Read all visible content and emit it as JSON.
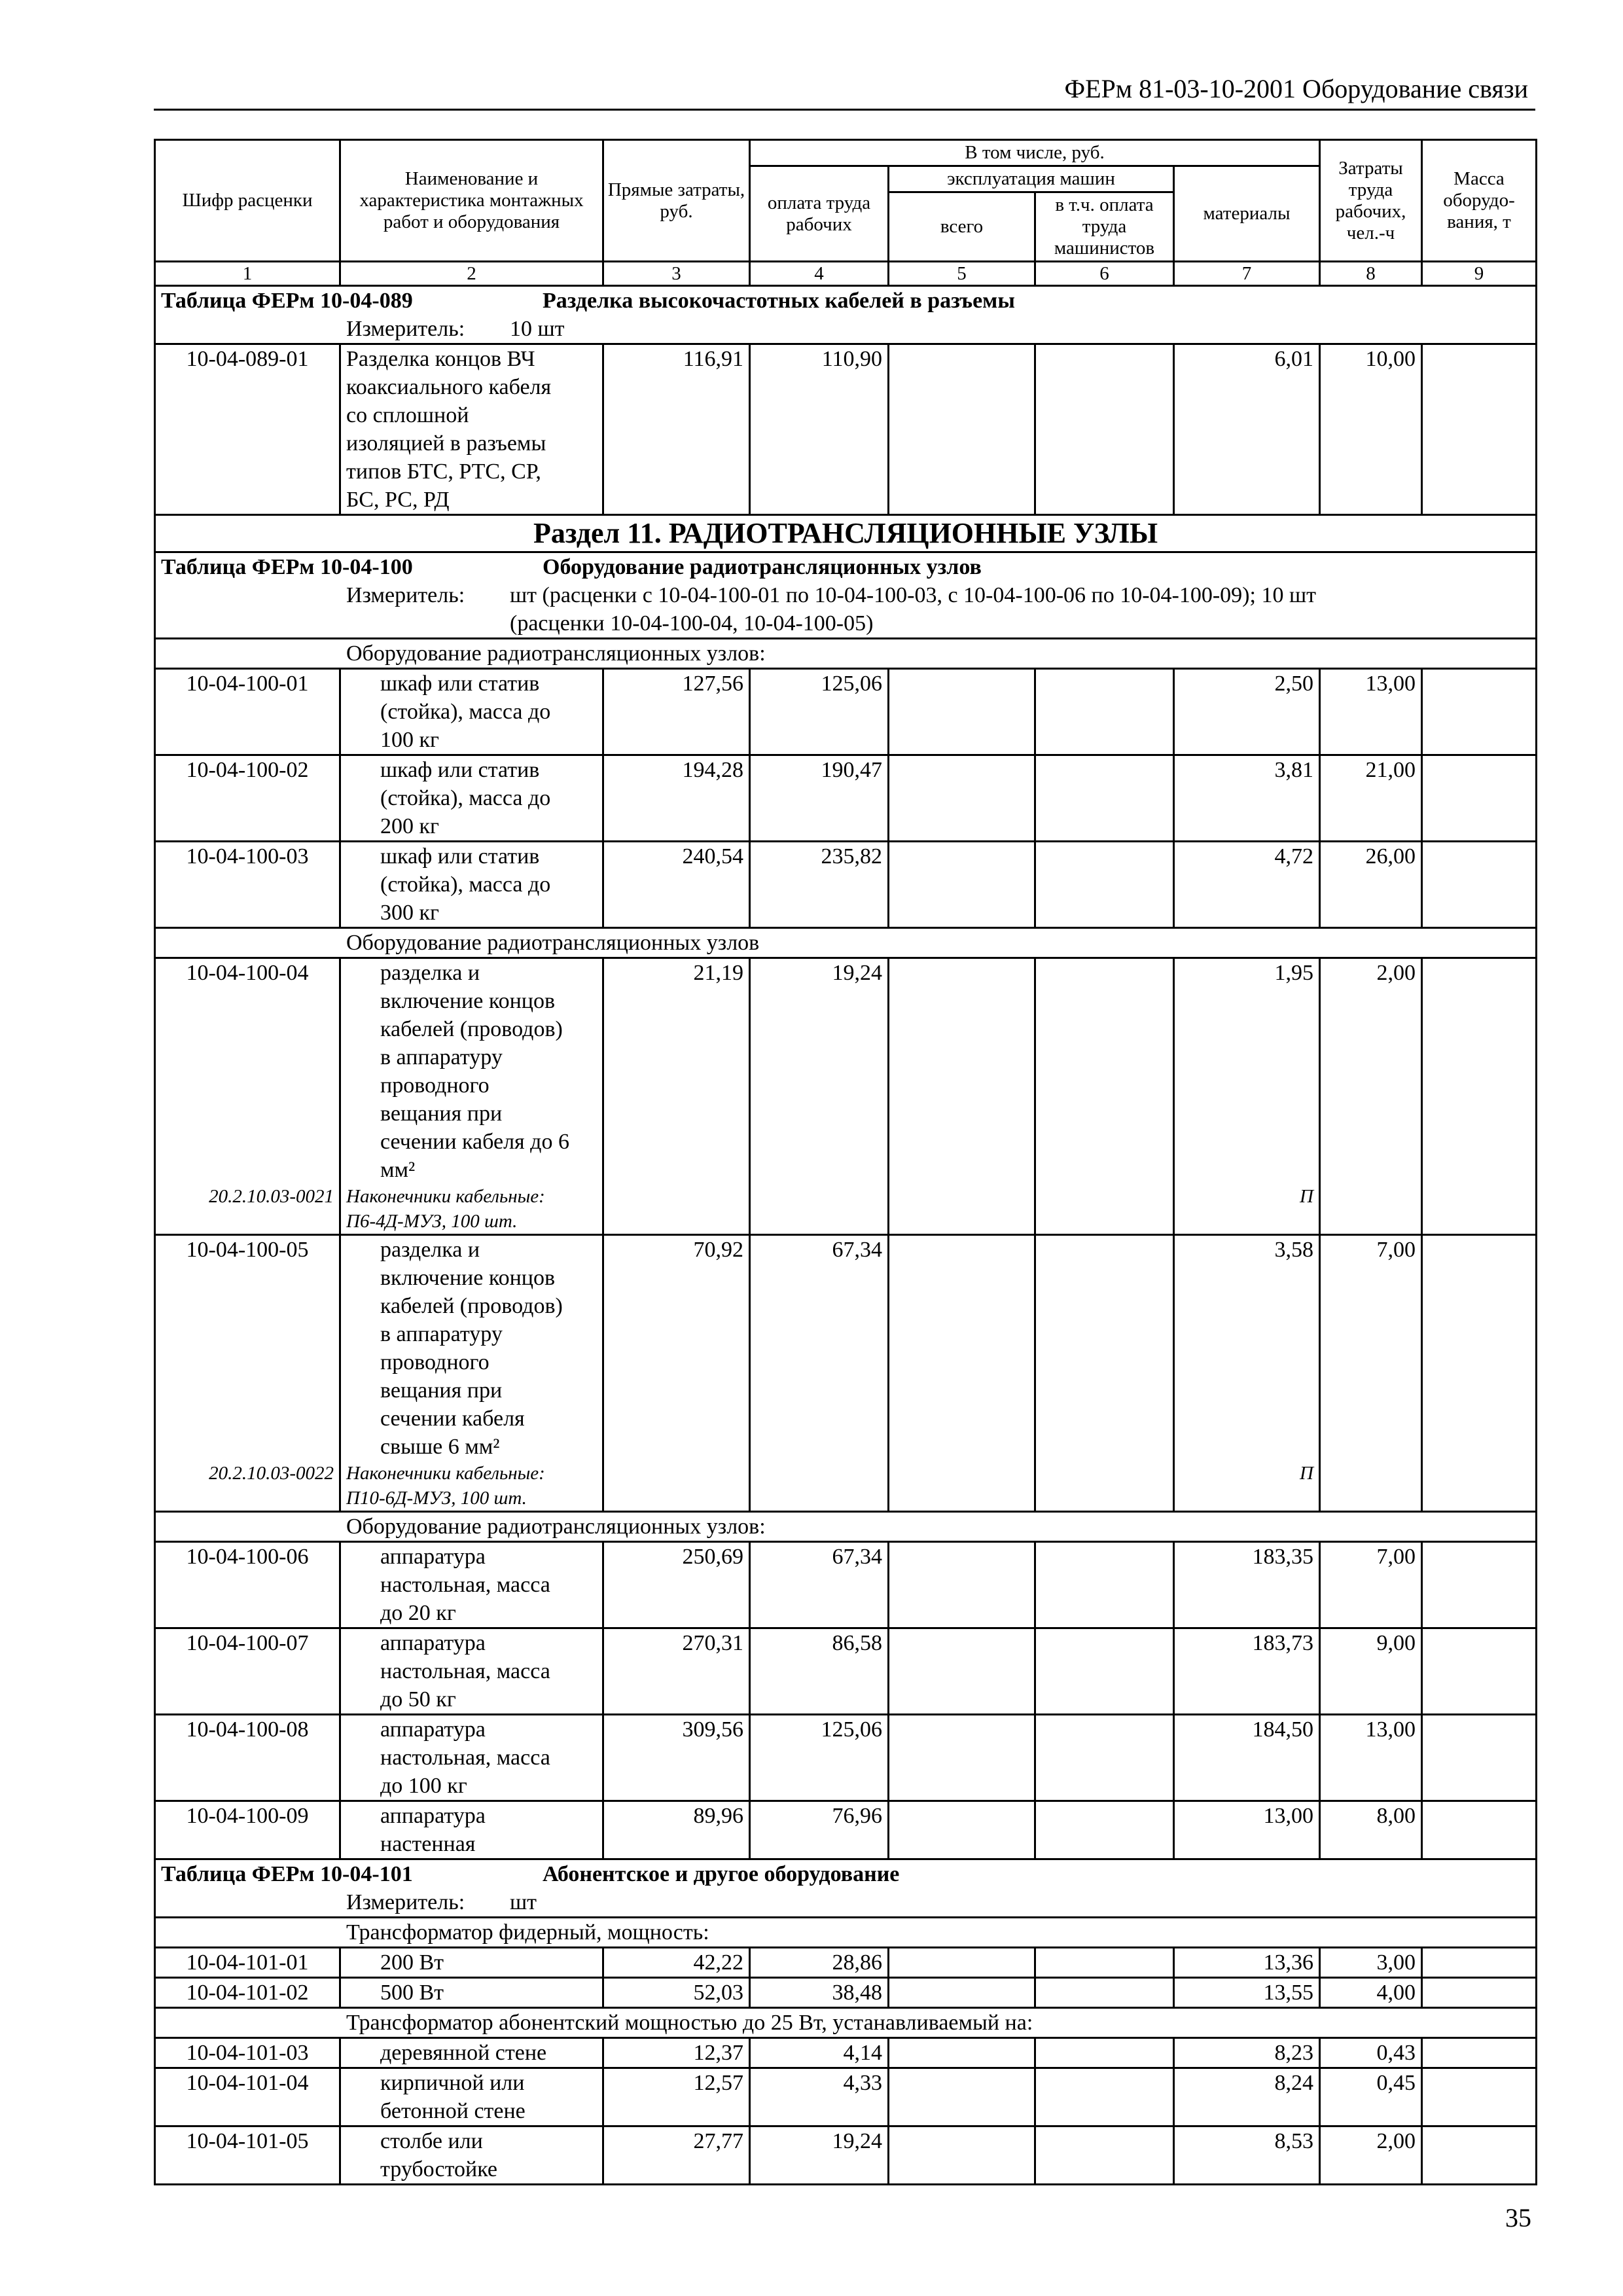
{
  "header": {
    "running_title": "ФЕРм 81-03-10-2001 Оборудование связи",
    "page_number": "35"
  },
  "columns": {
    "code": "Шифр расценки",
    "name": "Наименование и характеристика монтажных работ и оборудования",
    "direct": "Прямые затраты, руб.",
    "including": "В том числе, руб.",
    "wages": "оплата труда рабочих",
    "machines": "эксплуатация машин",
    "machines_total": "всего",
    "machinists": "в т.ч. оплата труда машинистов",
    "materials": "материалы",
    "labor": "Затраты труда рабочих, чел.-ч",
    "mass": "Масса оборудо-вания, т",
    "numbers": [
      "1",
      "2",
      "3",
      "4",
      "5",
      "6",
      "7",
      "8",
      "9"
    ]
  },
  "rows": [
    {
      "type": "table",
      "label": "Таблица ФЕРм 10-04-089",
      "title": "Разделка высокочастотных кабелей в разъемы"
    },
    {
      "type": "meter",
      "label": "Измеритель:",
      "value": "10 шт"
    },
    {
      "type": "item",
      "indent": false,
      "code": "10-04-089-01",
      "name": "Разделка концов ВЧ\nкоаксиального кабеля\nсо сплошной\nизоляцией в разъемы\nтипов БТС, РТС, СР,\nБС, РС, РД",
      "direct": "116,91",
      "wages": "110,90",
      "machines": "",
      "machinists": "",
      "materials": "6,01",
      "labor": "10,00",
      "mass": ""
    },
    {
      "type": "section",
      "text": "Раздел 11. РАДИОТРАНСЛЯЦИОННЫЕ УЗЛЫ"
    },
    {
      "type": "table",
      "label": "Таблица ФЕРм 10-04-100",
      "title": "Оборудование радиотрансляционных узлов"
    },
    {
      "type": "meter",
      "label": "Измеритель:",
      "value": "шт (расценки с 10-04-100-01 по 10-04-100-03, с 10-04-100-06 по 10-04-100-09); 10 шт\n(расценки 10-04-100-04, 10-04-100-05)"
    },
    {
      "type": "group",
      "text": "Оборудование радиотрансляционных узлов:"
    },
    {
      "type": "item",
      "indent": true,
      "code": "10-04-100-01",
      "name": "шкаф или статив\n(стойка), масса до\n100 кг",
      "direct": "127,56",
      "wages": "125,06",
      "machines": "",
      "machinists": "",
      "materials": "2,50",
      "labor": "13,00",
      "mass": ""
    },
    {
      "type": "item",
      "indent": true,
      "code": "10-04-100-02",
      "name": "шкаф или статив\n(стойка), масса до\n200 кг",
      "direct": "194,28",
      "wages": "190,47",
      "machines": "",
      "machinists": "",
      "materials": "3,81",
      "labor": "21,00",
      "mass": ""
    },
    {
      "type": "item",
      "indent": true,
      "code": "10-04-100-03",
      "name": "шкаф или статив\n(стойка), масса до\n300 кг",
      "direct": "240,54",
      "wages": "235,82",
      "machines": "",
      "machinists": "",
      "materials": "4,72",
      "labor": "26,00",
      "mass": ""
    },
    {
      "type": "group",
      "text": "Оборудование радиотрансляционных узлов"
    },
    {
      "type": "item",
      "indent": true,
      "code": "10-04-100-04",
      "name": "разделка и\nвключение концов\nкабелей (проводов)\nв аппаратуру\nпроводного\nвещания при\nсечении кабеля до 6\nмм²",
      "direct": "21,19",
      "wages": "19,24",
      "machines": "",
      "machinists": "",
      "materials": "1,95",
      "labor": "2,00",
      "mass": "",
      "resource": {
        "code": "20.2.10.03-0021",
        "name": "Наконечники кабельные:\nП6-4Д-МУЗ, 100 шт.",
        "materials": "П"
      }
    },
    {
      "type": "item",
      "indent": true,
      "code": "10-04-100-05",
      "name": "разделка и\nвключение концов\nкабелей (проводов)\nв аппаратуру\nпроводного\nвещания при\nсечении кабеля\nсвыше 6 мм²",
      "direct": "70,92",
      "wages": "67,34",
      "machines": "",
      "machinists": "",
      "materials": "3,58",
      "labor": "7,00",
      "mass": "",
      "resource": {
        "code": "20.2.10.03-0022",
        "name": "Наконечники кабельные:\nП10-6Д-МУЗ, 100 шт.",
        "materials": "П"
      }
    },
    {
      "type": "group",
      "text": "Оборудование радиотрансляционных узлов:"
    },
    {
      "type": "item",
      "indent": true,
      "code": "10-04-100-06",
      "name": "аппаратура\nнастольная, масса\nдо 20 кг",
      "direct": "250,69",
      "wages": "67,34",
      "machines": "",
      "machinists": "",
      "materials": "183,35",
      "labor": "7,00",
      "mass": ""
    },
    {
      "type": "item",
      "indent": true,
      "code": "10-04-100-07",
      "name": "аппаратура\nнастольная, масса\nдо 50 кг",
      "direct": "270,31",
      "wages": "86,58",
      "machines": "",
      "machinists": "",
      "materials": "183,73",
      "labor": "9,00",
      "mass": ""
    },
    {
      "type": "item",
      "indent": true,
      "code": "10-04-100-08",
      "name": "аппаратура\nнастольная, масса\nдо 100 кг",
      "direct": "309,56",
      "wages": "125,06",
      "machines": "",
      "machinists": "",
      "materials": "184,50",
      "labor": "13,00",
      "mass": ""
    },
    {
      "type": "item",
      "indent": true,
      "code": "10-04-100-09",
      "name": "аппаратура\nнастенная",
      "direct": "89,96",
      "wages": "76,96",
      "machines": "",
      "machinists": "",
      "materials": "13,00",
      "labor": "8,00",
      "mass": ""
    },
    {
      "type": "table",
      "label": "Таблица ФЕРм 10-04-101",
      "title": "Абонентское и другое оборудование"
    },
    {
      "type": "meter",
      "label": "Измеритель:",
      "value": "шт"
    },
    {
      "type": "group",
      "text": "Трансформатор фидерный, мощность:"
    },
    {
      "type": "item",
      "indent": true,
      "code": "10-04-101-01",
      "name": "200 Вт",
      "direct": "42,22",
      "wages": "28,86",
      "machines": "",
      "machinists": "",
      "materials": "13,36",
      "labor": "3,00",
      "mass": ""
    },
    {
      "type": "item",
      "indent": true,
      "code": "10-04-101-02",
      "name": "500 Вт",
      "direct": "52,03",
      "wages": "38,48",
      "machines": "",
      "machinists": "",
      "materials": "13,55",
      "labor": "4,00",
      "mass": ""
    },
    {
      "type": "group",
      "text": "Трансформатор абонентский мощностью до 25 Вт, устанавливаемый на:"
    },
    {
      "type": "item",
      "indent": true,
      "code": "10-04-101-03",
      "name": "деревянной стене",
      "direct": "12,37",
      "wages": "4,14",
      "machines": "",
      "machinists": "",
      "materials": "8,23",
      "labor": "0,43",
      "mass": ""
    },
    {
      "type": "item",
      "indent": true,
      "code": "10-04-101-04",
      "name": "кирпичной или\nбетонной стене",
      "direct": "12,57",
      "wages": "4,33",
      "machines": "",
      "machinists": "",
      "materials": "8,24",
      "labor": "0,45",
      "mass": ""
    },
    {
      "type": "item",
      "indent": true,
      "code": "10-04-101-05",
      "name": "столбе или\nтрубостойке",
      "direct": "27,77",
      "wages": "19,24",
      "machines": "",
      "machinists": "",
      "materials": "8,53",
      "labor": "2,00",
      "mass": ""
    }
  ]
}
